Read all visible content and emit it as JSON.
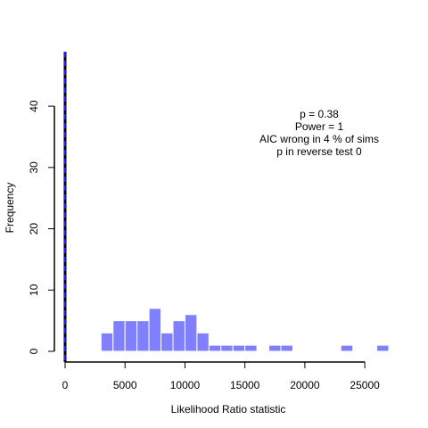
{
  "chart_data": {
    "type": "bar",
    "xlabel": "Likelihood Ratio statistic",
    "ylabel": "Frequency",
    "xlim": [
      0,
      27000
    ],
    "ylim": [
      0,
      47
    ],
    "bin_width": 1000,
    "bins": [
      {
        "x0": 3000,
        "x1": 4000,
        "count": 3
      },
      {
        "x0": 4000,
        "x1": 5000,
        "count": 5
      },
      {
        "x0": 5000,
        "x1": 6000,
        "count": 5
      },
      {
        "x0": 6000,
        "x1": 7000,
        "count": 5
      },
      {
        "x0": 7000,
        "x1": 8000,
        "count": 7
      },
      {
        "x0": 8000,
        "x1": 9000,
        "count": 3
      },
      {
        "x0": 9000,
        "x1": 10000,
        "count": 5
      },
      {
        "x0": 10000,
        "x1": 11000,
        "count": 6
      },
      {
        "x0": 11000,
        "x1": 12000,
        "count": 3
      },
      {
        "x0": 12000,
        "x1": 13000,
        "count": 1
      },
      {
        "x0": 13000,
        "x1": 14000,
        "count": 1
      },
      {
        "x0": 14000,
        "x1": 15000,
        "count": 1
      },
      {
        "x0": 15000,
        "x1": 16000,
        "count": 1
      },
      {
        "x0": 17000,
        "x1": 18000,
        "count": 1
      },
      {
        "x0": 18000,
        "x1": 19000,
        "count": 1
      },
      {
        "x0": 23000,
        "x1": 24000,
        "count": 1
      },
      {
        "x0": 26000,
        "x1": 27000,
        "count": 1
      }
    ],
    "x_ticks": [
      0,
      5000,
      10000,
      15000,
      20000,
      25000
    ],
    "x_tick_labels": [
      "0",
      "5000",
      "10000",
      "15000",
      "20000",
      "25000"
    ],
    "y_ticks": [
      0,
      10,
      20,
      30,
      40
    ],
    "y_tick_labels": [
      "0",
      "10",
      "20",
      "30",
      "40"
    ],
    "reference_lines": [
      {
        "x": 0,
        "style": "solid",
        "color": "#000000"
      },
      {
        "x": 0,
        "style": "dashed",
        "color": "#1a1aff"
      }
    ],
    "annotations": [
      "p =  0.38",
      "Power =  1",
      "AIC wrong in  4 % of sims",
      "p in reverse test  0"
    ],
    "bar_color": "#8080ff",
    "bar_edge_color": "#ffffff",
    "grid": false
  }
}
